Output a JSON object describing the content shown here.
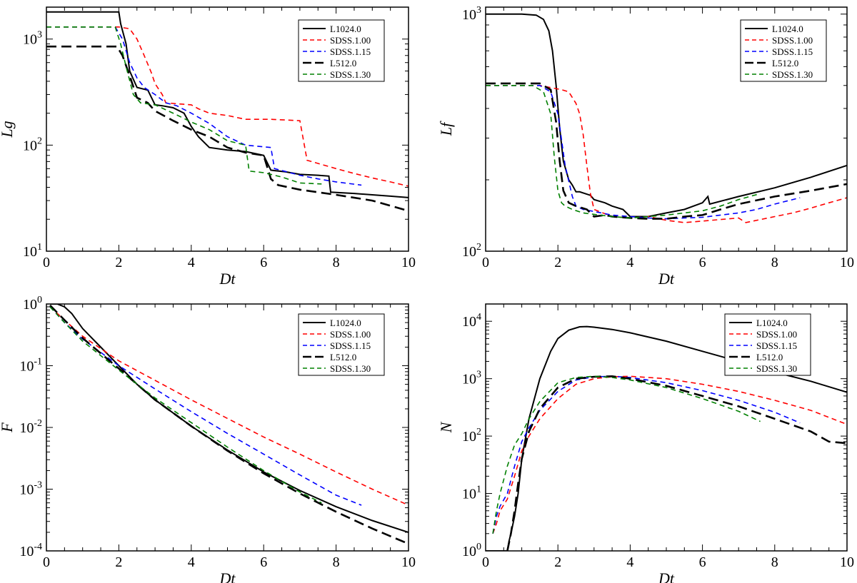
{
  "colors": {
    "L1024.0": "#000000",
    "SDSS.1.00": "#ff0000",
    "SDSS.1.15": "#0000ff",
    "L512.0": "#000000",
    "SDSS.1.30": "#008000"
  },
  "chart_data": [
    {
      "type": "line",
      "ylabel": "Lg",
      "xlabel": "Dt",
      "yscale": "log",
      "xlim": [
        0,
        10
      ],
      "ylim": [
        10,
        2000
      ],
      "xticks": [
        0,
        2,
        4,
        6,
        8,
        10
      ],
      "yticks": [
        {
          "v": 10,
          "b": "10",
          "e": "1"
        },
        {
          "v": 100,
          "b": "10",
          "e": "2"
        },
        {
          "v": 1000,
          "b": "10",
          "e": "3"
        }
      ],
      "legend": "top-right",
      "series": [
        {
          "name": "L1024.0",
          "style": "solid",
          "x": [
            0,
            2.0,
            2.05,
            2.2,
            2.3,
            2.5,
            2.8,
            3.0,
            3.2,
            3.5,
            3.8,
            4.0,
            4.2,
            4.5,
            5.0,
            5.5,
            6.0,
            6.2,
            6.6,
            7.0,
            7.5,
            7.8,
            7.85,
            8.5,
            9.0,
            9.5,
            10.0
          ],
          "y": [
            1800,
            1800,
            1400,
            900,
            500,
            350,
            330,
            240,
            235,
            225,
            200,
            150,
            120,
            95,
            90,
            87,
            80,
            58,
            56,
            53,
            52,
            51,
            36,
            35,
            34,
            33,
            32
          ]
        },
        {
          "name": "SDSS.1.00",
          "style": "dashed",
          "x": [
            0,
            2.0,
            2.3,
            2.5,
            2.7,
            2.9,
            3.0,
            3.2,
            3.3,
            4.0,
            4.2,
            4.5,
            5.0,
            5.5,
            6.2,
            7.0,
            7.2,
            8.0,
            8.5,
            9.0,
            9.5,
            10.0
          ],
          "y": [
            1300,
            1300,
            1250,
            1000,
            700,
            480,
            380,
            300,
            250,
            240,
            220,
            200,
            190,
            175,
            175,
            170,
            72,
            60,
            54,
            49,
            45,
            41
          ]
        },
        {
          "name": "SDSS.1.15",
          "style": "dashed",
          "x": [
            0,
            1.9,
            2.1,
            2.3,
            2.5,
            2.7,
            3.0,
            3.3,
            3.6,
            4.0,
            4.5,
            5.0,
            5.5,
            6.2,
            6.3,
            7.0,
            7.5,
            8.0,
            8.7
          ],
          "y": [
            1300,
            1300,
            1000,
            600,
            430,
            350,
            300,
            250,
            235,
            200,
            160,
            120,
            100,
            95,
            60,
            52,
            48,
            45,
            42
          ]
        },
        {
          "name": "L512.0",
          "style": "dashed",
          "x": [
            0,
            1.95,
            2.1,
            2.3,
            2.5,
            2.8,
            3.0,
            3.5,
            4.0,
            4.5,
            5.0,
            5.5,
            6.0,
            6.2,
            6.4,
            7.0,
            8.0,
            9.0,
            10.0
          ],
          "y": [
            850,
            850,
            700,
            450,
            280,
            250,
            210,
            170,
            140,
            120,
            95,
            85,
            80,
            48,
            42,
            38,
            34,
            30,
            24
          ]
        },
        {
          "name": "SDSS.1.30",
          "style": "dashed",
          "x": [
            0,
            1.9,
            2.05,
            2.2,
            2.4,
            2.6,
            3.0,
            3.5,
            4.0,
            4.5,
            5.0,
            5.5,
            5.6,
            6.0,
            6.5,
            7.0,
            7.6
          ],
          "y": [
            1300,
            1300,
            900,
            550,
            300,
            250,
            240,
            200,
            165,
            140,
            110,
            100,
            57,
            55,
            50,
            44,
            43
          ]
        }
      ]
    },
    {
      "type": "line",
      "ylabel": "Lf",
      "xlabel": "Dt",
      "yscale": "log",
      "xlim": [
        0,
        10
      ],
      "ylim": [
        100,
        1070
      ],
      "xticks": [
        0,
        2,
        4,
        6,
        8,
        10
      ],
      "yticks": [
        {
          "v": 100,
          "b": "10",
          "e": "2"
        },
        {
          "v": 1000,
          "b": "10",
          "e": "3"
        }
      ],
      "legend": "top-right",
      "series": [
        {
          "name": "L1024.0",
          "style": "solid",
          "x": [
            0,
            1.0,
            1.4,
            1.6,
            1.75,
            1.85,
            1.95,
            2.05,
            2.15,
            2.3,
            2.4,
            2.5,
            2.6,
            2.9,
            3.0,
            3.3,
            3.5,
            3.8,
            4.0,
            4.5,
            5.0,
            5.5,
            6.0,
            6.15,
            6.2,
            7.0,
            8.0,
            9.0,
            10.0
          ],
          "y": [
            1000,
            1000,
            990,
            950,
            850,
            700,
            500,
            330,
            240,
            200,
            190,
            178,
            178,
            172,
            165,
            160,
            155,
            150,
            140,
            140,
            145,
            150,
            160,
            170,
            158,
            170,
            185,
            205,
            230
          ]
        },
        {
          "name": "SDSS.1.00",
          "style": "dashed",
          "x": [
            0,
            1.5,
            2.1,
            2.3,
            2.5,
            2.6,
            2.7,
            2.8,
            2.9,
            3.0,
            3.5,
            4.0,
            4.5,
            5.0,
            5.5,
            6.0,
            6.5,
            7.0,
            7.2,
            8.0,
            8.5,
            9.0,
            9.5,
            10.0
          ],
          "y": [
            500,
            500,
            480,
            470,
            420,
            380,
            310,
            230,
            175,
            150,
            140,
            138,
            140,
            135,
            132,
            134,
            136,
            138,
            132,
            140,
            145,
            152,
            160,
            168
          ]
        },
        {
          "name": "SDSS.1.15",
          "style": "dashed",
          "x": [
            0,
            1.5,
            1.8,
            2.0,
            2.2,
            2.4,
            2.5,
            2.7,
            2.9,
            3.2,
            3.5,
            4.0,
            4.5,
            5.0,
            5.5,
            6.0,
            6.5,
            7.0,
            7.5,
            8.0,
            8.7
          ],
          "y": [
            500,
            500,
            470,
            380,
            230,
            170,
            155,
            150,
            148,
            145,
            142,
            140,
            138,
            137,
            138,
            139,
            142,
            145,
            150,
            158,
            168
          ]
        },
        {
          "name": "L512.0",
          "style": "dashed",
          "x": [
            0,
            1.5,
            1.8,
            1.95,
            2.05,
            2.15,
            2.3,
            2.5,
            2.8,
            3.0,
            3.3,
            3.5,
            4.0,
            4.5,
            5.0,
            5.5,
            6.0,
            6.5,
            7.0,
            8.0,
            9.0,
            10.0
          ],
          "y": [
            510,
            510,
            480,
            350,
            240,
            180,
            160,
            155,
            150,
            140,
            142,
            140,
            138,
            137,
            137,
            140,
            142,
            150,
            158,
            170,
            180,
            192
          ]
        },
        {
          "name": "SDSS.1.30",
          "style": "dashed",
          "x": [
            0,
            1.3,
            1.6,
            1.8,
            1.9,
            2.0,
            2.1,
            2.2,
            2.4,
            2.7,
            3.0,
            3.5,
            4.0,
            4.5,
            5.0,
            5.5,
            6.0,
            6.5,
            7.0,
            7.6
          ],
          "y": [
            500,
            500,
            470,
            380,
            250,
            180,
            160,
            155,
            150,
            145,
            143,
            140,
            138,
            140,
            142,
            145,
            148,
            155,
            165,
            175
          ]
        }
      ]
    },
    {
      "type": "line",
      "ylabel": "F",
      "xlabel": "Dt",
      "yscale": "log",
      "xlim": [
        0,
        10
      ],
      "ylim": [
        0.0001,
        1
      ],
      "xticks": [
        0,
        2,
        4,
        6,
        8,
        10
      ],
      "yticks": [
        {
          "v": 0.0001,
          "b": "10",
          "e": "-4"
        },
        {
          "v": 0.001,
          "b": "10",
          "e": "-3"
        },
        {
          "v": 0.01,
          "b": "10",
          "e": "-2"
        },
        {
          "v": 0.1,
          "b": "10",
          "e": "-1"
        },
        {
          "v": 1,
          "b": "10",
          "e": "0"
        }
      ],
      "legend": "top-right",
      "series": [
        {
          "name": "L1024.0",
          "style": "solid",
          "x": [
            0.1,
            0.3,
            0.5,
            0.7,
            1.0,
            1.5,
            2.0,
            2.5,
            3.0,
            4.0,
            5.0,
            6.0,
            7.0,
            8.0,
            9.0,
            10.0
          ],
          "y": [
            1.0,
            1.0,
            0.9,
            0.7,
            0.4,
            0.2,
            0.1,
            0.05,
            0.028,
            0.0105,
            0.0043,
            0.0019,
            0.00095,
            0.00052,
            0.00031,
            0.0002
          ]
        },
        {
          "name": "SDSS.1.00",
          "style": "dashed",
          "x": [
            0.1,
            0.5,
            1.0,
            2.0,
            3.0,
            4.0,
            5.0,
            6.0,
            7.0,
            8.0,
            9.0,
            10.0
          ],
          "y": [
            0.9,
            0.55,
            0.3,
            0.12,
            0.058,
            0.028,
            0.014,
            0.007,
            0.0037,
            0.0019,
            0.001,
            0.00055
          ]
        },
        {
          "name": "SDSS.1.15",
          "style": "dashed",
          "x": [
            0.1,
            0.5,
            1.0,
            2.0,
            3.0,
            4.0,
            5.0,
            6.0,
            7.0,
            8.0,
            8.7
          ],
          "y": [
            0.9,
            0.5,
            0.27,
            0.1,
            0.042,
            0.018,
            0.008,
            0.0037,
            0.0017,
            0.0008,
            0.00055
          ]
        },
        {
          "name": "L512.0",
          "style": "dashed",
          "x": [
            0.1,
            0.5,
            1.0,
            2.0,
            3.0,
            4.0,
            5.0,
            6.0,
            7.0,
            8.0,
            9.0,
            10.0
          ],
          "y": [
            0.95,
            0.55,
            0.28,
            0.09,
            0.028,
            0.0105,
            0.0042,
            0.0018,
            0.00085,
            0.00043,
            0.00023,
            0.00013
          ]
        },
        {
          "name": "SDSS.1.30",
          "style": "dashed",
          "x": [
            0.1,
            0.5,
            1.0,
            2.0,
            3.0,
            4.0,
            5.0,
            6.0,
            7.0,
            7.6
          ],
          "y": [
            0.9,
            0.5,
            0.25,
            0.085,
            0.03,
            0.012,
            0.0048,
            0.002,
            0.0009,
            0.0006
          ]
        }
      ]
    },
    {
      "type": "line",
      "ylabel": "N",
      "xlabel": "Dt",
      "yscale": "log",
      "xlim": [
        0,
        10
      ],
      "ylim": [
        1,
        20000
      ],
      "xticks": [
        0,
        2,
        4,
        6,
        8,
        10
      ],
      "yticks": [
        {
          "v": 1,
          "b": "10",
          "e": "0"
        },
        {
          "v": 10,
          "b": "10",
          "e": "1"
        },
        {
          "v": 100,
          "b": "10",
          "e": "2"
        },
        {
          "v": 1000,
          "b": "10",
          "e": "3"
        },
        {
          "v": 10000,
          "b": "10",
          "e": "4"
        }
      ],
      "legend": "top-right",
      "series": [
        {
          "name": "L1024.0",
          "style": "solid",
          "x": [
            0,
            0.6,
            0.65,
            0.7,
            0.8,
            0.9,
            1.0,
            1.2,
            1.5,
            1.8,
            2.0,
            2.3,
            2.6,
            2.8,
            3.0,
            3.5,
            4.0,
            5.0,
            6.0,
            7.0,
            8.0,
            9.0,
            10.0
          ],
          "y": [
            1,
            1,
            1.5,
            2,
            4,
            10,
            40,
            200,
            1000,
            3000,
            5000,
            7000,
            8000,
            8100,
            7900,
            7200,
            6300,
            4500,
            3000,
            2000,
            1300,
            900,
            580
          ]
        },
        {
          "name": "SDSS.1.00",
          "style": "dashed",
          "x": [
            0.2,
            0.3,
            0.4,
            0.6,
            0.8,
            1.0,
            1.2,
            1.5,
            2.0,
            2.5,
            3.0,
            3.5,
            4.0,
            4.5,
            5.0,
            6.0,
            7.0,
            8.0,
            9.0,
            10.0
          ],
          "y": [
            2,
            3,
            5,
            8,
            20,
            55,
            100,
            200,
            450,
            800,
            1000,
            1080,
            1100,
            1050,
            1000,
            800,
            600,
            420,
            280,
            160
          ]
        },
        {
          "name": "SDSS.1.15",
          "style": "dashed",
          "x": [
            0.2,
            0.3,
            0.4,
            0.6,
            0.8,
            1.0,
            1.2,
            1.5,
            2.0,
            2.5,
            3.0,
            3.5,
            4.0,
            5.0,
            6.0,
            7.0,
            8.0,
            8.7
          ],
          "y": [
            2,
            4,
            6,
            10,
            30,
            80,
            140,
            280,
            600,
            950,
            1080,
            1100,
            1050,
            850,
            620,
            420,
            260,
            170
          ]
        },
        {
          "name": "L512.0",
          "style": "dashed",
          "x": [
            0.6,
            0.7,
            0.8,
            0.9,
            1.0,
            1.2,
            1.5,
            2.0,
            2.5,
            3.0,
            3.5,
            4.0,
            5.0,
            6.0,
            7.0,
            8.0,
            9.0,
            9.5,
            10.0
          ],
          "y": [
            1,
            2,
            5,
            15,
            40,
            120,
            300,
            700,
            1000,
            1080,
            1100,
            1000,
            750,
            500,
            330,
            200,
            120,
            80,
            75
          ]
        },
        {
          "name": "SDSS.1.30",
          "style": "dashed",
          "x": [
            0.2,
            0.3,
            0.4,
            0.6,
            0.8,
            1.0,
            1.2,
            1.5,
            2.0,
            2.5,
            3.0,
            3.5,
            4.0,
            5.0,
            6.0,
            7.0,
            7.6
          ],
          "y": [
            2,
            5,
            10,
            30,
            70,
            110,
            200,
            400,
            850,
            1050,
            1100,
            1050,
            950,
            700,
            450,
            270,
            180
          ]
        }
      ]
    }
  ]
}
